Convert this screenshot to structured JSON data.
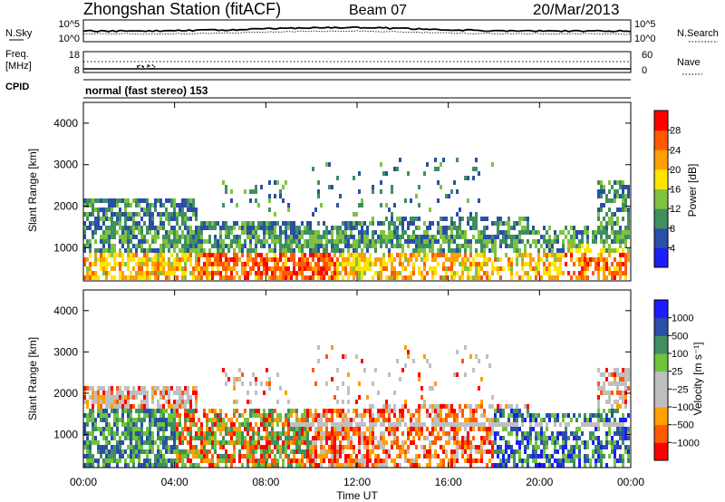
{
  "header": {
    "station": "Zhongshan Station (fitACF)",
    "beam": "Beam 07",
    "date": "20/Mar/2013"
  },
  "params_panel": {
    "nsky_label": "N.Sky",
    "nsky_ticks": [
      "10^5",
      "10^0"
    ],
    "nsearch_label": "N.Search",
    "nsearch_ticks": [
      "10^5",
      "10^0"
    ],
    "freq_label": "Freq.",
    "freq_unit": "[MHz]",
    "freq_ticks": [
      "18",
      "8"
    ],
    "nave_label": "Nave",
    "nave_ticks": [
      "60",
      "0"
    ],
    "cpid_label": "CPID",
    "cpid_text": "normal (fast stereo) 153"
  },
  "colors": {
    "power": [
      "#1d1dff",
      "#2a4fa8",
      "#3f8f5f",
      "#7fc241",
      "#ffe400",
      "#ff9f00",
      "#ff5a00",
      "#ff0000"
    ],
    "velocity": [
      "#ff0000",
      "#ff5a00",
      "#ff9f00",
      "#bfbfbf",
      "#bfbfbf",
      "#6fc43c",
      "#3f8f5f",
      "#2a4fa8",
      "#1d1dff"
    ]
  },
  "chart_data": [
    {
      "type": "heatmap",
      "name": "power",
      "ylabel": "Slant Range [km]",
      "ylim": [
        200,
        4500
      ],
      "yticks": [
        "4000",
        "3000",
        "2000",
        "1000"
      ],
      "xlim_hours": [
        0,
        24
      ],
      "colorbar_label": "Power [dB]",
      "colorbar_ticks": [
        "28",
        "24",
        "20",
        "16",
        "12",
        "8",
        "4"
      ],
      "colorbar_range": [
        0,
        32
      ]
    },
    {
      "type": "heatmap",
      "name": "velocity",
      "ylabel": "Slant Range [km]",
      "ylim": [
        200,
        4500
      ],
      "yticks": [
        "4000",
        "3000",
        "2000",
        "1000"
      ],
      "xlabel": "Time UT",
      "xticks": [
        "00:00",
        "04:00",
        "08:00",
        "12:00",
        "16:00",
        "20:00",
        "00:00"
      ],
      "xlim_hours": [
        0,
        24
      ],
      "colorbar_label": "Velocity [m s⁻¹]",
      "colorbar_ticks": [
        "1000",
        "500",
        "100",
        "25",
        "−25",
        "−100",
        "−500",
        "−1000"
      ]
    }
  ]
}
